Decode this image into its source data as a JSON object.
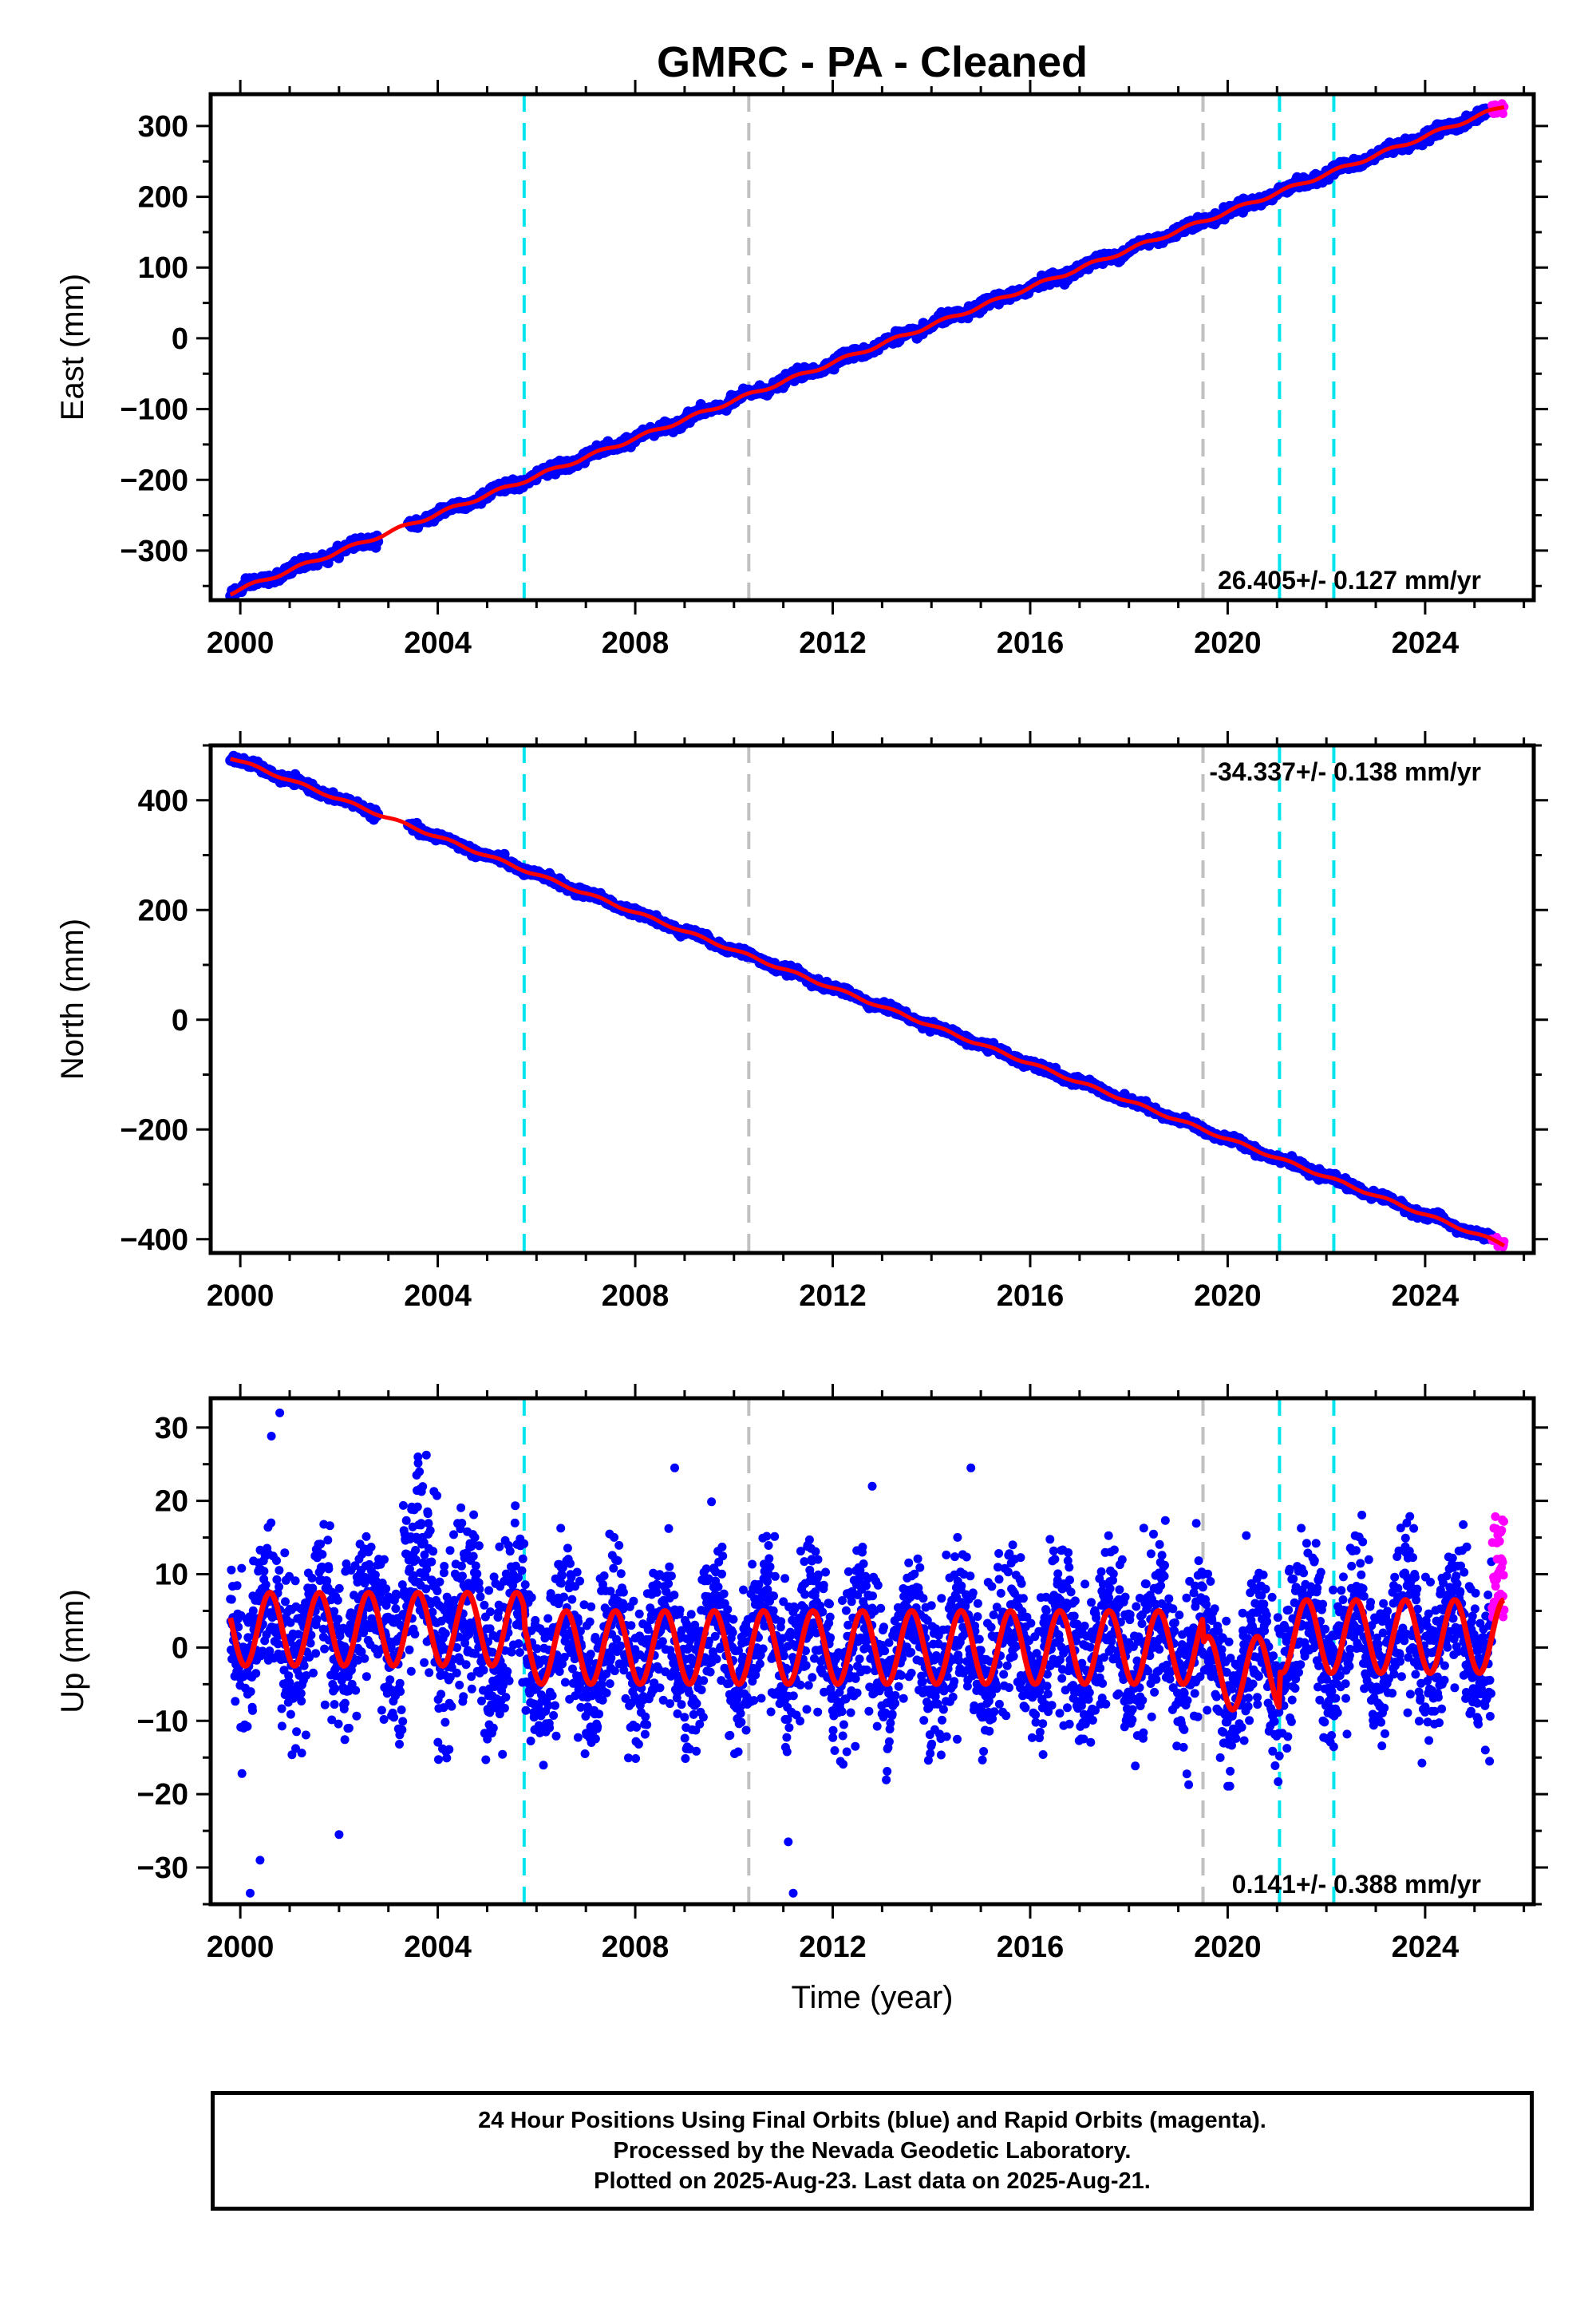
{
  "title": "GMRC  - PA - Cleaned",
  "colors": {
    "final_orbits": "#0000ff",
    "rapid_orbits": "#ff00ff",
    "model_fit": "#ff0000",
    "event_cyan": "#00e5ee",
    "event_gray": "#c0c0c0"
  },
  "event_lines": [
    {
      "year": 2005.75,
      "color": "cyan"
    },
    {
      "year": 2010.3,
      "color": "gray"
    },
    {
      "year": 2019.5,
      "color": "gray"
    },
    {
      "year": 2021.05,
      "color": "cyan"
    },
    {
      "year": 2022.15,
      "color": "cyan"
    }
  ],
  "xaxis": {
    "range": [
      1999.4,
      2026.2
    ],
    "ticks": [
      2000,
      2004,
      2008,
      2012,
      2016,
      2020,
      2024
    ],
    "tick_labels": [
      "2000",
      "2004",
      "2008",
      "2012",
      "2016",
      "2020",
      "2024"
    ],
    "label": "Time (year)"
  },
  "chart_data": [
    {
      "type": "scatter",
      "panel": "east",
      "ylabel": "East (mm)",
      "ylim": [
        -370,
        345
      ],
      "yticks": [
        300,
        200,
        100,
        0,
        -100,
        -200,
        -300
      ],
      "ytick_labels": [
        "300",
        "200",
        "100",
        "0",
        "−100",
        "−200",
        "−300"
      ],
      "velocity_label": "26.405+/- 0.127 mm/yr",
      "velocity_position": "bottom-right",
      "trend": {
        "start": [
          1999.8,
          -360
        ],
        "end": [
          2025.6,
          328
        ]
      },
      "data_gap": [
        2002.8,
        2003.4
      ],
      "rapid_tail": [
        2025.35,
        2025.65
      ]
    },
    {
      "type": "scatter",
      "panel": "north",
      "ylabel": "North (mm)",
      "ylim": [
        -425,
        500
      ],
      "yticks": [
        400,
        200,
        0,
        -200,
        -400
      ],
      "ytick_labels": [
        "400",
        "200",
        "0",
        "−200",
        "−400"
      ],
      "velocity_label": "-34.337+/- 0.138 mm/yr",
      "velocity_position": "top-right",
      "trend": {
        "start": [
          1999.8,
          478
        ],
        "end": [
          2025.6,
          -410
        ]
      },
      "data_gap": [
        2002.8,
        2003.4
      ],
      "rapid_tail": [
        2025.35,
        2025.65
      ]
    },
    {
      "type": "scatter",
      "panel": "up",
      "ylabel": "Up (mm)",
      "ylim": [
        -35,
        34
      ],
      "yticks": [
        30,
        20,
        10,
        0,
        -10,
        -20,
        -30
      ],
      "ytick_labels": [
        "30",
        "20",
        "10",
        "0",
        "−10",
        "−20",
        "−30"
      ],
      "velocity_label": "0.141+/- 0.388 mm/yr",
      "velocity_position": "bottom-right",
      "seasonal_amplitude_mm": 5,
      "segment_offsets": [
        {
          "from": 1999.8,
          "to": 2005.75,
          "offset": 2.5
        },
        {
          "from": 2005.75,
          "to": 2019.5,
          "offset": 0
        },
        {
          "from": 2019.5,
          "to": 2021.05,
          "offset": -3.5
        },
        {
          "from": 2021.05,
          "to": 2025.7,
          "offset": 1.5
        }
      ],
      "outliers": [
        [
          2000.8,
          32
        ],
        [
          2003.6,
          26
        ],
        [
          2008.8,
          24.5
        ],
        [
          2012.8,
          22
        ],
        [
          2014.8,
          24.5
        ],
        [
          2000.2,
          -33.5
        ],
        [
          2011.2,
          -33.5
        ],
        [
          2011.1,
          -26.5
        ],
        [
          2002.0,
          -25.5
        ],
        [
          2000.4,
          -29
        ]
      ],
      "rapid_tail": [
        2025.35,
        2025.65
      ]
    }
  ],
  "footer": {
    "line1": "24 Hour Positions Using Final Orbits (blue) and Rapid Orbits (magenta).",
    "line2": "Processed by the Nevada Geodetic Laboratory.",
    "line3": "Plotted on 2025-Aug-23. Last data on 2025-Aug-21."
  }
}
